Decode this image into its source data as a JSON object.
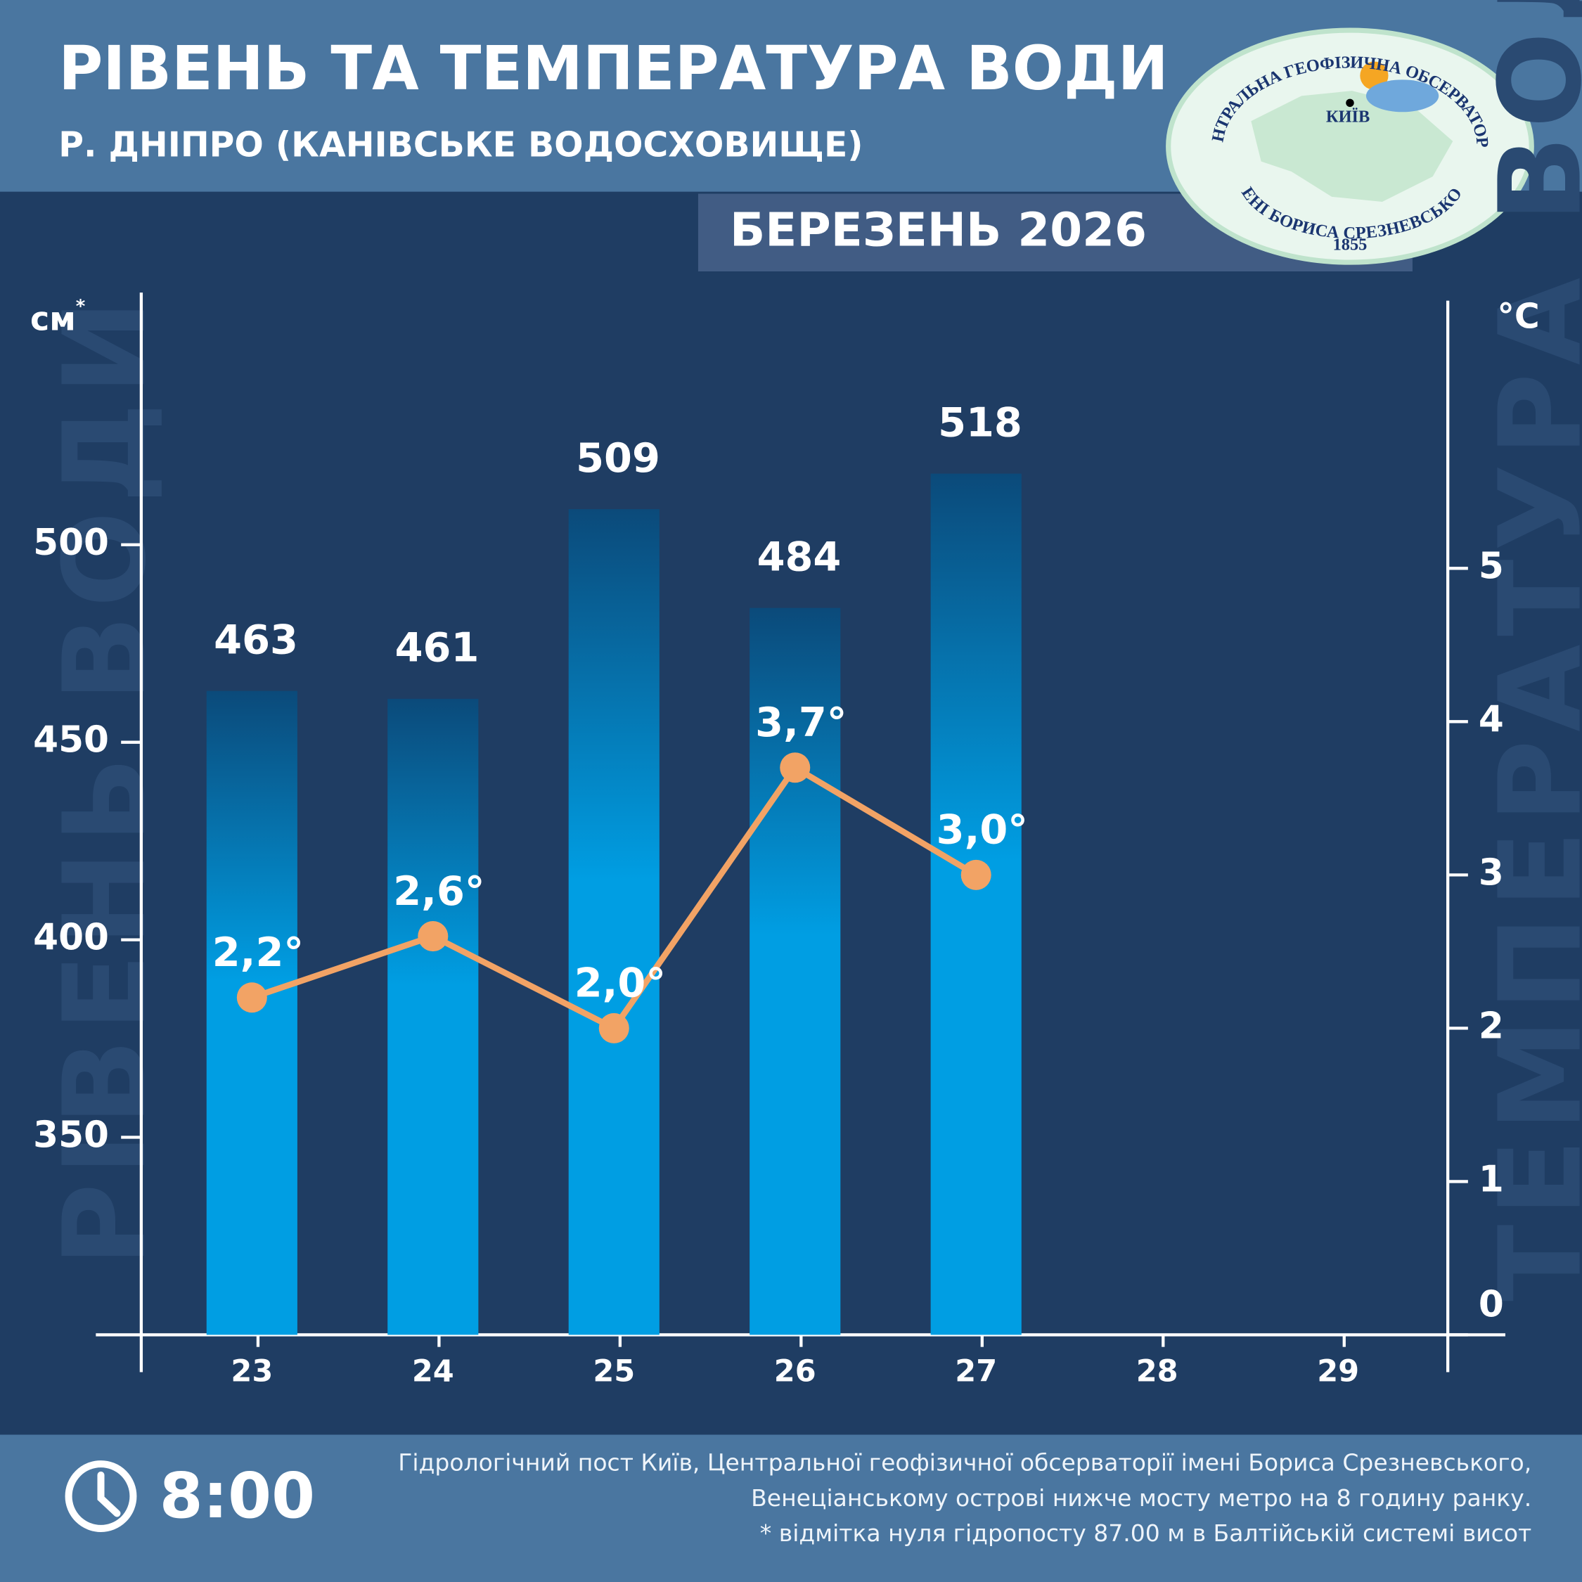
{
  "header": {
    "title": "РІВЕНЬ ТА ТЕМПЕРАТУРА ВОДИ",
    "subtitle": "Р. ДНІПРО (КАНІВСЬКЕ ВОДОСХОВИЩЕ)",
    "period": "БЕРЕЗЕНЬ 2026"
  },
  "logo": {
    "top": "ЦЕНТРАЛЬНА ГЕОФІЗИЧНА ОБСЕРВАТОРІЯ",
    "bottom": "ІМЕНІ БОРИСА СРЕЗНЕВСЬКОГО",
    "year": "1855",
    "city": "КИЇВ"
  },
  "chart_data": {
    "type": "bar",
    "y_axis_label": "РІВЕНЬ ВОДИ",
    "y_unit": "см",
    "y_unit_mark": "*",
    "y2_axis_label": "ТЕМПЕРАТУРА ВОДИ",
    "y2_unit": "°C",
    "categories": [
      "23",
      "24",
      "25",
      "26",
      "27",
      "28",
      "29"
    ],
    "series": [
      {
        "name": "Рівень води",
        "type": "bar",
        "color": "#009ee3",
        "values": [
          463,
          461,
          509,
          484,
          518,
          null,
          null
        ]
      },
      {
        "name": "Температура води",
        "type": "line",
        "axis": "y2",
        "color": "#f2a365",
        "values": [
          2.2,
          2.6,
          2.0,
          3.7,
          3.0,
          null,
          null
        ],
        "value_labels": [
          "2,2°",
          "2,6°",
          "2,0°",
          "3,7°",
          "3,0°",
          null,
          null
        ]
      }
    ],
    "ylim": [
      300,
      560
    ],
    "yticks": [
      350,
      400,
      450,
      500
    ],
    "y2lim": [
      0,
      6.7
    ],
    "y2ticks": [
      0,
      1,
      2,
      3,
      4,
      5
    ]
  },
  "footer": {
    "time": "8:00",
    "notes": [
      "Гідрологічний пост Київ, Центральної геофізичної обсерваторії імені Бориса Срезневського,",
      "Венеціанському острові нижче мосту метро  на 8 годину ранку.",
      "* відмітка нуля гідропосту 87.00 м в Балтійській системі висот"
    ]
  }
}
